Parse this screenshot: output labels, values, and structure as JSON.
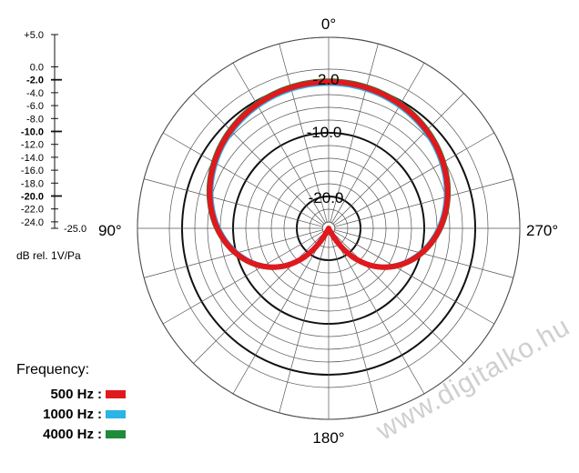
{
  "chart_data": {
    "type": "polar",
    "angle_labels": {
      "top": "0°",
      "left": "90°",
      "right": "270°",
      "bottom": "180°"
    },
    "scale": {
      "ticks": [
        "+5.0",
        "0.0",
        "-2.0",
        "-4.0",
        "-6.0",
        "-8.0",
        "-10.0",
        "-12.0",
        "-14.0",
        "-16.0",
        "-18.0",
        "-20.0",
        "-22.0",
        "-24.0"
      ],
      "bold_ticks": [
        "-2.0",
        "-10.0",
        "-20.0"
      ],
      "min_label": "-25.0",
      "unit": "dB rel. 1V/Pa"
    },
    "ring_labels": [
      "-2.0",
      "-10.0",
      "-20.0"
    ],
    "rings_db": [
      5,
      0,
      -2,
      -4,
      -6,
      -8,
      -10,
      -12,
      -14,
      -16,
      -18,
      -20,
      -22,
      -24
    ],
    "bold_rings_db": [
      -2,
      -10,
      -20
    ],
    "series": [
      {
        "name": "500 Hz",
        "color": "#e0191f",
        "pattern": "cardioid"
      },
      {
        "name": "1000 Hz",
        "color": "#2bb4e6",
        "pattern": "cardioid"
      },
      {
        "name": "4000 Hz",
        "color": "#1f8a3a",
        "pattern": "cardioid"
      }
    ],
    "legend_title": "Frequency:",
    "legend_position": "bottom-left"
  },
  "watermark": "www.digitalko.hu"
}
